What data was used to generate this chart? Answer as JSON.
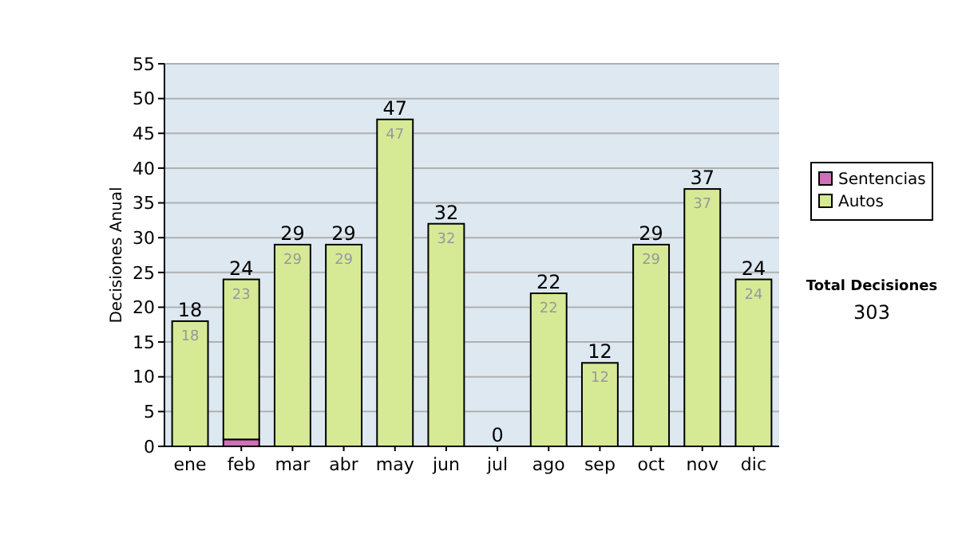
{
  "chart_data": {
    "type": "bar",
    "stacked": true,
    "ylabel": "Decisiones Anual",
    "categories": [
      "ene",
      "feb",
      "mar",
      "abr",
      "may",
      "jun",
      "jul",
      "ago",
      "sep",
      "oct",
      "nov",
      "dic"
    ],
    "series": [
      {
        "name": "Sentencias",
        "color": "#d070b8",
        "values": [
          0,
          1,
          0,
          0,
          0,
          0,
          0,
          0,
          0,
          0,
          0,
          0
        ]
      },
      {
        "name": "Autos",
        "color": "#d6ea96",
        "values": [
          18,
          23,
          29,
          29,
          47,
          32,
          0,
          22,
          12,
          29,
          37,
          24
        ],
        "value_labels": [
          "18",
          "23",
          "29",
          "29",
          "47",
          "32",
          null,
          "22",
          "12",
          "29",
          "37",
          "24"
        ]
      }
    ],
    "totals": [
      "18",
      "24",
      "29",
      "29",
      "47",
      "32",
      "0",
      "22",
      "12",
      "29",
      "37",
      "24"
    ],
    "ylim": [
      0,
      55
    ],
    "yticks": [
      0,
      5,
      10,
      15,
      20,
      25,
      30,
      35,
      40,
      45,
      50,
      55
    ],
    "grid": "y",
    "legend": "right",
    "annotations": [
      "Total Decisiones",
      "303"
    ]
  }
}
